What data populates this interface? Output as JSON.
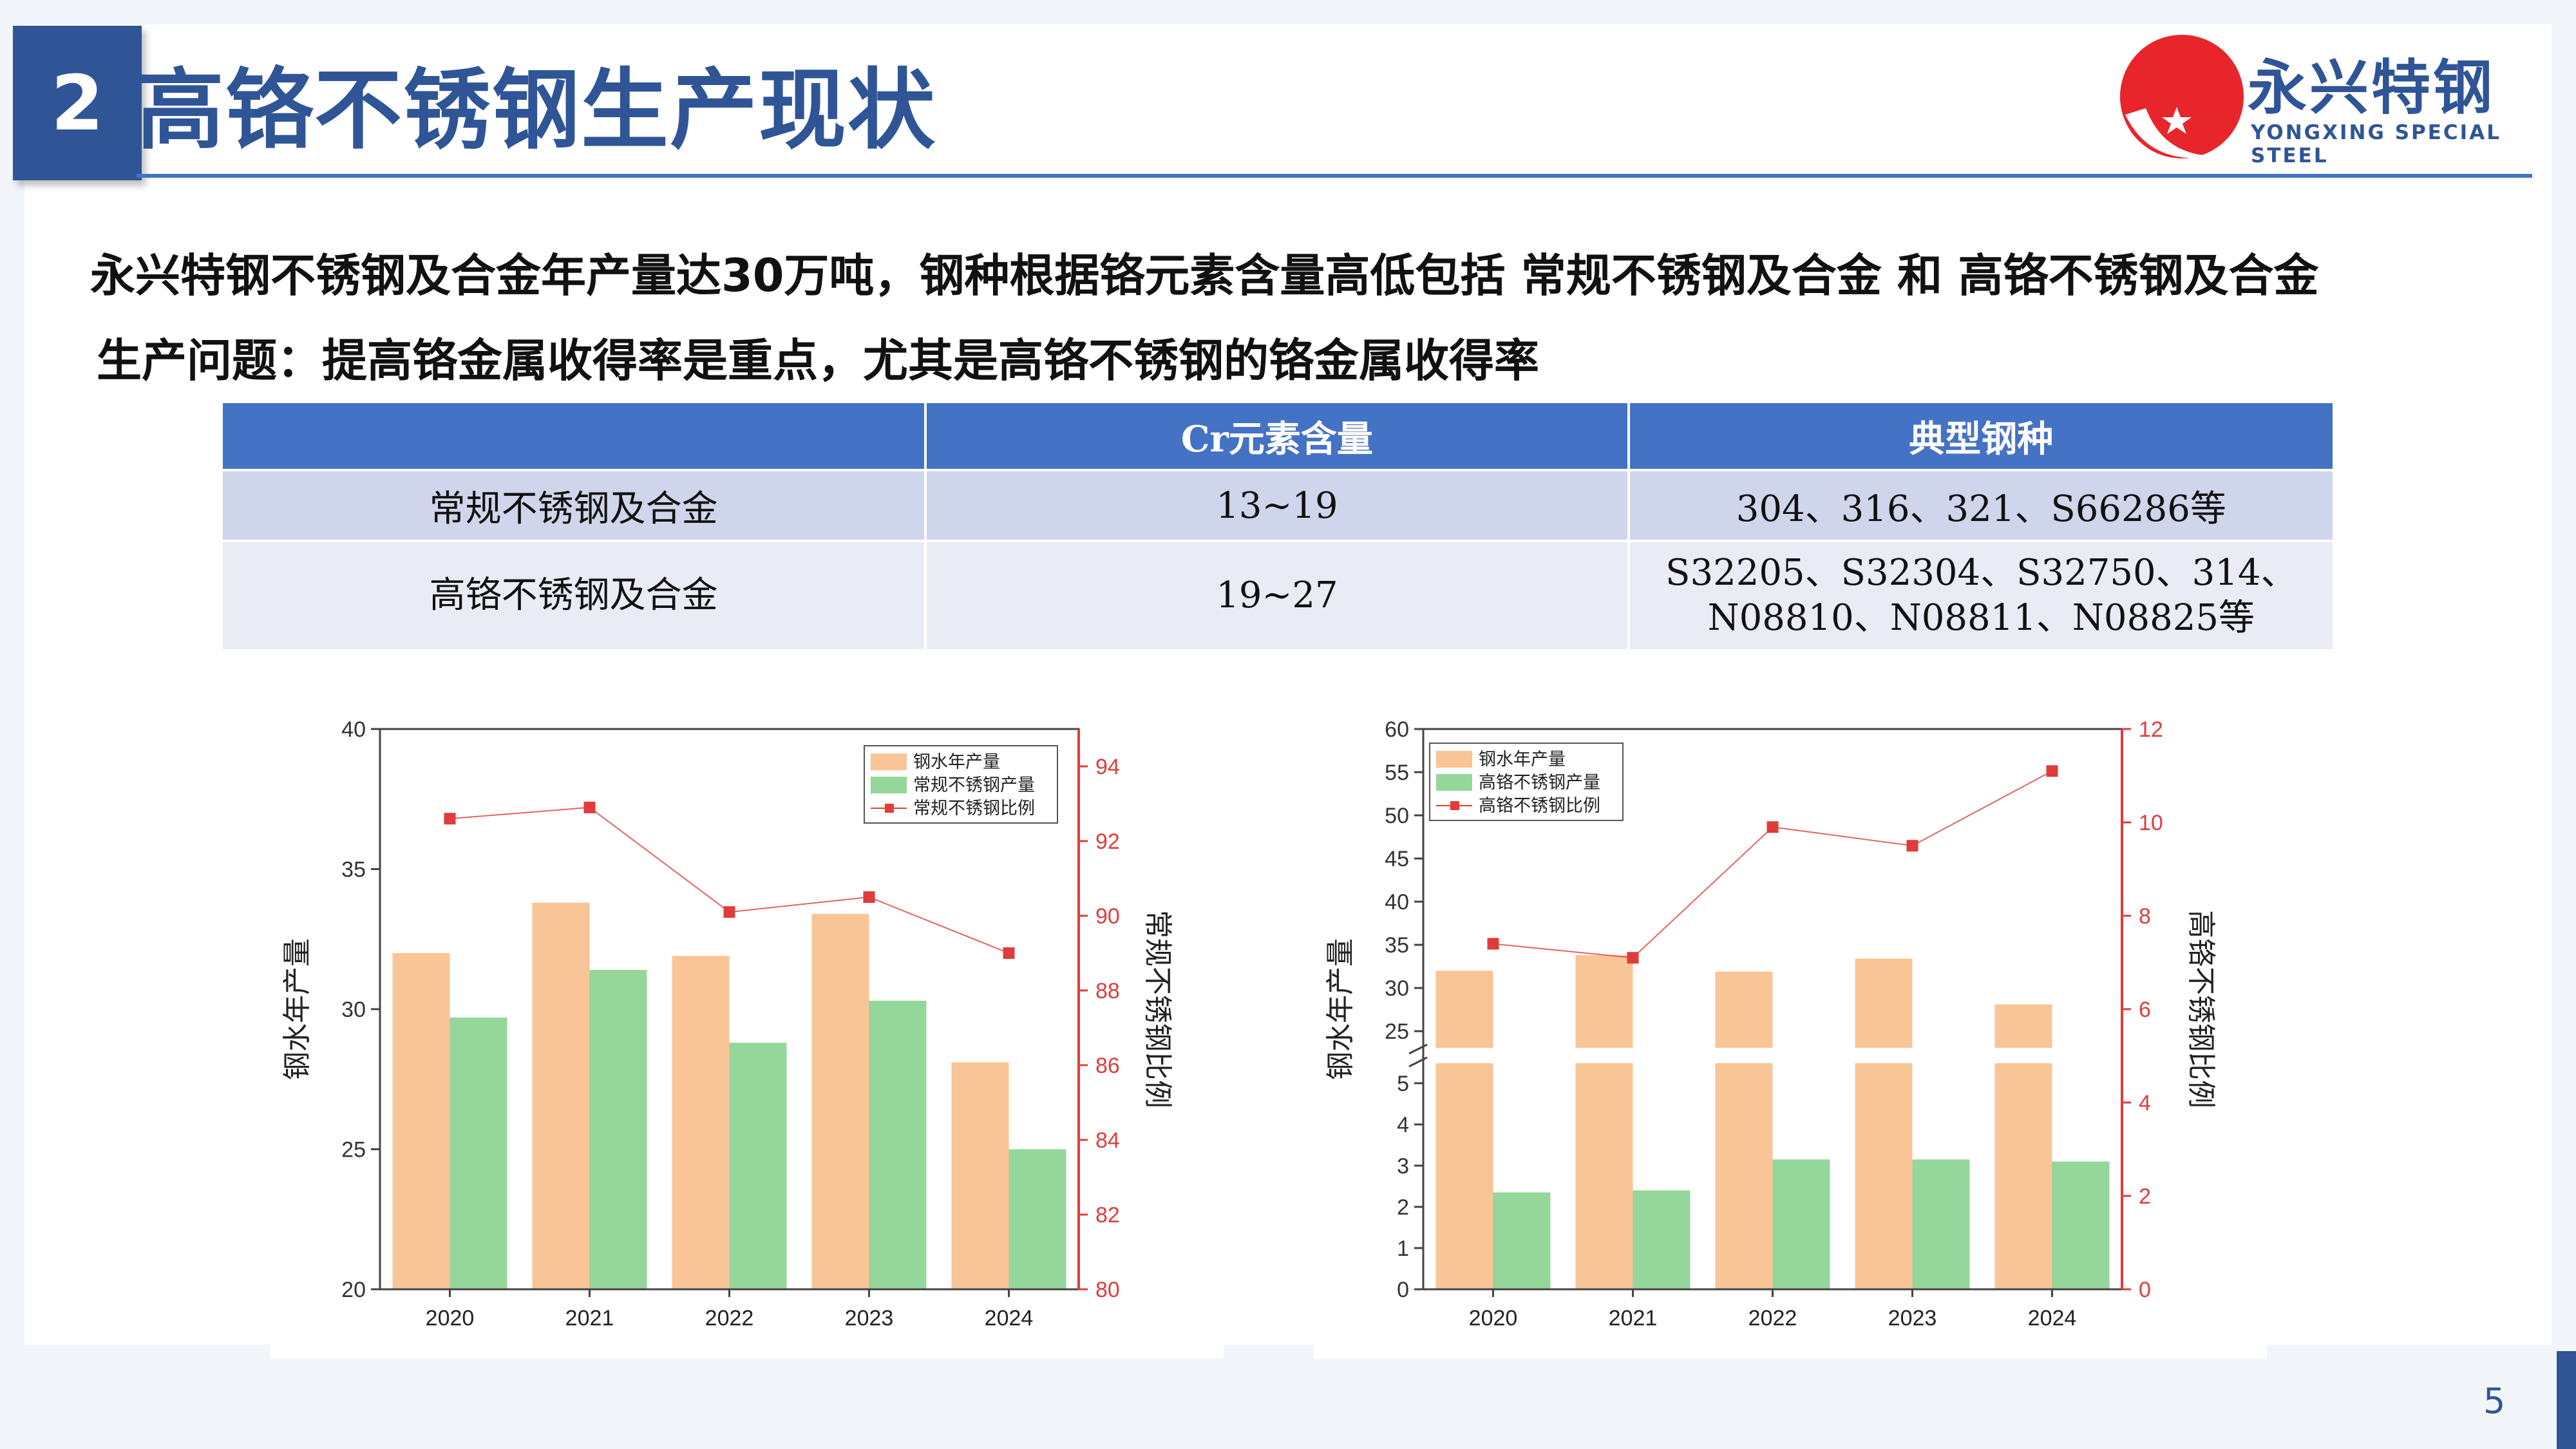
{
  "header": {
    "section_number": "2",
    "title": "高铬不锈钢生产现状"
  },
  "logo": {
    "name_cn": "永兴特钢",
    "name_en": "YONGXING SPECIAL STEEL",
    "icon": "red-sun-star-logo-icon"
  },
  "intro": {
    "line1": "永兴特钢不锈钢及合金年产量达30万吨，钢种根据铬元素含量高低包括 常规不锈钢及合金 和 高铬不锈钢及合金",
    "line2": "生产问题：提高铬金属收得率是重点，尤其是高铬不锈钢的铬金属收得率"
  },
  "table": {
    "headers": [
      "",
      "Cr元素含量",
      "典型钢种"
    ],
    "rows": [
      {
        "type": "常规不锈钢及合金",
        "cr": "13~19",
        "grades": "304、316、321、S66286等",
        "grades2": ""
      },
      {
        "type": "高铬不锈钢及合金",
        "cr": "19~27",
        "grades": "S32205、S32304、S32750、314、",
        "grades2": "N08810、N08811、N08825等"
      }
    ]
  },
  "chart_data": [
    {
      "type": "bar",
      "categories": [
        "2020",
        "2021",
        "2022",
        "2023",
        "2024"
      ],
      "series": [
        {
          "name": "钢水年产量",
          "kind": "bar",
          "axis": "left",
          "color": "#f9c496",
          "values": [
            32.0,
            33.8,
            31.9,
            33.4,
            28.1
          ]
        },
        {
          "name": "常规不锈钢产量",
          "kind": "bar",
          "axis": "left",
          "color": "#95d69b",
          "values": [
            29.7,
            31.4,
            28.8,
            30.3,
            25.0
          ]
        },
        {
          "name": "常规不锈钢比例",
          "kind": "line",
          "axis": "right",
          "color": "#e03c3c",
          "values": [
            92.6,
            92.9,
            90.1,
            90.5,
            89.0
          ]
        }
      ],
      "ylabel": "钢水年产量",
      "ylabel_right": "常规不锈钢比例",
      "ylim": [
        20,
        40
      ],
      "yticks": [
        20,
        25,
        30,
        35,
        40
      ],
      "ylim_right": [
        80,
        95
      ],
      "yticks_right": [
        80,
        82,
        84,
        86,
        88,
        90,
        92,
        94
      ],
      "legend": "top-right"
    },
    {
      "type": "bar",
      "categories": [
        "2020",
        "2021",
        "2022",
        "2023",
        "2024"
      ],
      "series": [
        {
          "name": "钢水年产量",
          "kind": "bar",
          "axis": "left",
          "color": "#f9c496",
          "values": [
            32.0,
            33.8,
            31.9,
            33.4,
            28.1
          ]
        },
        {
          "name": "高铬不锈钢产量",
          "kind": "bar",
          "axis": "left",
          "color": "#95d69b",
          "values": [
            2.35,
            2.4,
            3.15,
            3.15,
            3.1
          ]
        },
        {
          "name": "高铬不锈钢比例",
          "kind": "line",
          "axis": "right",
          "color": "#e03c3c",
          "values": [
            7.4,
            7.1,
            9.9,
            9.5,
            11.1
          ]
        }
      ],
      "ylabel": "钢水年产量",
      "ylabel_right": "高铬不锈钢比例",
      "ylim": [
        0,
        60
      ],
      "broken_axis": {
        "lower": [
          0,
          5.5
        ],
        "upper": [
          23,
          60
        ]
      },
      "yticks_lower": [
        0,
        1,
        2,
        3,
        4,
        5
      ],
      "yticks_upper": [
        25,
        30,
        35,
        40,
        45,
        50,
        55,
        60
      ],
      "ylim_right": [
        0,
        12
      ],
      "yticks_right": [
        0,
        2,
        4,
        6,
        8,
        10,
        12
      ],
      "legend": "top-left"
    }
  ],
  "footer": {
    "page_number": "5"
  }
}
